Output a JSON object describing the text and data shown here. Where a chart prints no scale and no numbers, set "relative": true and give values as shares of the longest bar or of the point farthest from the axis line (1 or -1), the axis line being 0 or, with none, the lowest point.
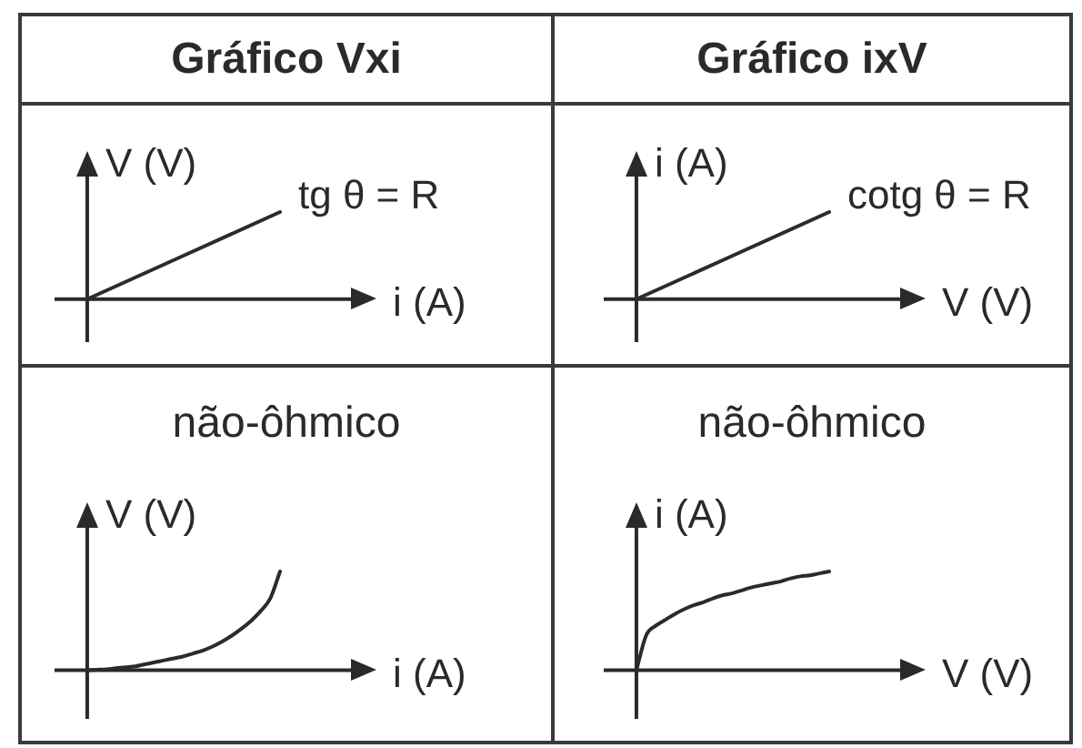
{
  "chart_data": [
    {
      "type": "line",
      "title": "Gráfico Vxi",
      "xlabel": "i (A)",
      "ylabel": "V (V)",
      "annotations": [
        "tg θ = R"
      ],
      "relative": true,
      "categories": [
        null,
        null
      ],
      "values": [
        0,
        1
      ],
      "color": "#2b2b2b",
      "marker": "none"
    },
    {
      "type": "line",
      "title": "Gráfico ixV",
      "xlabel": "V (V)",
      "ylabel": "i (A)",
      "annotations": [
        "cotg θ = R"
      ],
      "relative": true,
      "categories": [
        null,
        null
      ],
      "values": [
        0,
        1
      ],
      "color": "#2b2b2b",
      "marker": "none"
    },
    {
      "type": "line",
      "title": "não-ôhmico",
      "xlabel": "i (A)",
      "ylabel": "V (V)",
      "relative": true,
      "categories": [
        null,
        null,
        null,
        null,
        null,
        null,
        null,
        null,
        null,
        null,
        null,
        null,
        null,
        null,
        null,
        null,
        null,
        null,
        null,
        null,
        null
      ],
      "values": [
        0,
        0.005,
        0.01,
        0.02,
        0.03,
        0.04,
        0.06,
        0.08,
        0.1,
        0.12,
        0.14,
        0.17,
        0.2,
        0.24,
        0.29,
        0.35,
        0.42,
        0.5,
        0.6,
        0.73,
        1
      ],
      "color": "#2b2b2b",
      "marker": "none"
    },
    {
      "type": "line",
      "title": "não-ôhmico",
      "xlabel": "V (V)",
      "ylabel": "i (A)",
      "relative": true,
      "categories": [
        null,
        null,
        null,
        null,
        null,
        null,
        null,
        null,
        null,
        null,
        null,
        null,
        null,
        null,
        null,
        null,
        null,
        null,
        null,
        null,
        null
      ],
      "values": [
        0,
        0.35,
        0.45,
        0.51,
        0.57,
        0.62,
        0.66,
        0.69,
        0.73,
        0.76,
        0.78,
        0.81,
        0.84,
        0.86,
        0.88,
        0.9,
        0.93,
        0.95,
        0.96,
        0.98,
        1
      ],
      "color": "#2b2b2b",
      "marker": "none"
    }
  ]
}
